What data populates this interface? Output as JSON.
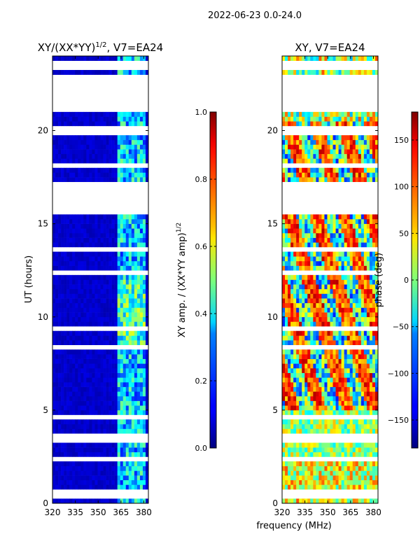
{
  "suptitle": "2022-06-23 0.0-24.0",
  "chart_data": [
    {
      "type": "heatmap",
      "title_main": "XY/(XX*YY)",
      "title_sup": "1/2",
      "title_tail": ", V7=EA24",
      "xlabel": "",
      "ylabel": "UT (hours)",
      "xlim": [
        320,
        383
      ],
      "ylim": [
        0,
        24
      ],
      "x_ticks": [
        320,
        335,
        350,
        365,
        380
      ],
      "y_ticks": [
        0,
        5,
        10,
        15,
        20
      ],
      "colorbar": {
        "label_main": "XY amp. / (XX*YY amp)",
        "label_sup": "1/2",
        "range": [
          0.0,
          1.0
        ],
        "ticks": [
          "0.0",
          "0.2",
          "0.4",
          "0.6",
          "0.8",
          "1.0"
        ]
      }
    },
    {
      "type": "heatmap",
      "title": "XY, V7=EA24",
      "xlabel": "frequency (MHz)",
      "ylabel": "",
      "xlim": [
        320,
        383
      ],
      "ylim": [
        0,
        24
      ],
      "x_ticks": [
        320,
        335,
        350,
        365,
        380
      ],
      "y_ticks": [
        0,
        5,
        10,
        15,
        20
      ],
      "colorbar": {
        "label": "phase (deg)",
        "range": [
          -180,
          180
        ],
        "ticks": [
          "−150",
          "−100",
          "−50",
          "0",
          "50",
          "100",
          "150"
        ]
      }
    }
  ],
  "flagged_hours": [
    [
      0.3,
      0.45
    ],
    [
      0.55,
      0.65
    ],
    [
      1.95,
      2.1
    ],
    [
      2.35,
      2.5
    ],
    [
      3.35,
      3.45
    ],
    [
      3.55,
      3.65
    ],
    [
      4.6,
      4.8
    ],
    [
      4.95,
      5.05
    ],
    [
      7.5,
      7.6
    ],
    [
      8.3,
      8.4
    ],
    [
      9.3,
      9.55
    ],
    [
      12.3,
      12.4
    ],
    [
      12.7,
      12.8
    ],
    [
      13.6,
      13.7
    ],
    [
      15.5,
      17.2
    ],
    [
      17.65,
      17.75
    ],
    [
      18.1,
      18.2
    ],
    [
      18.5,
      18.6
    ],
    [
      18.9,
      19.0
    ],
    [
      19.5,
      19.6
    ],
    [
      19.85,
      19.95
    ],
    [
      20.1,
      20.25
    ],
    [
      21.0,
      23.0
    ],
    [
      23.3,
      23.4
    ],
    [
      23.6,
      23.8
    ]
  ],
  "active_hours": [
    0,
    24
  ]
}
